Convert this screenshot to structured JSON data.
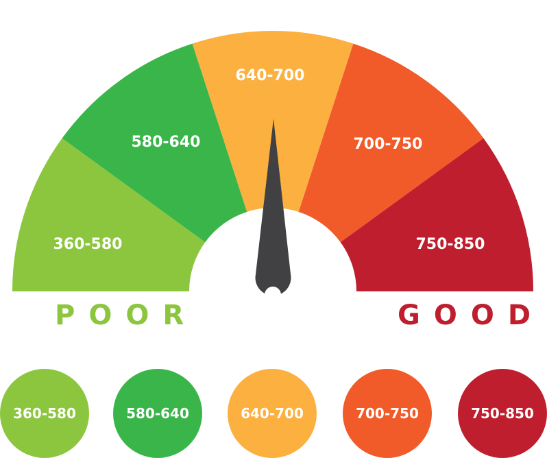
{
  "gauge": {
    "segments": [
      {
        "label": "360-580",
        "color": "#8cc63f"
      },
      {
        "label": "580-640",
        "color": "#3ab54a"
      },
      {
        "label": "640-700",
        "color": "#fbb040"
      },
      {
        "label": "700-750",
        "color": "#f15a29"
      },
      {
        "label": "750-850",
        "color": "#be1e2d"
      }
    ],
    "needle_color": "#414042",
    "needle_value": "640-700"
  },
  "labels": {
    "poor": "POOR",
    "poor_color": "#8cc63f",
    "good": "GOOD",
    "good_color": "#be1e2d"
  },
  "legend": [
    {
      "label": "360-580",
      "color": "#8cc63f"
    },
    {
      "label": "580-640",
      "color": "#3ab54a"
    },
    {
      "label": "640-700",
      "color": "#fbb040"
    },
    {
      "label": "700-750",
      "color": "#f15a29"
    },
    {
      "label": "750-850",
      "color": "#be1e2d"
    }
  ]
}
